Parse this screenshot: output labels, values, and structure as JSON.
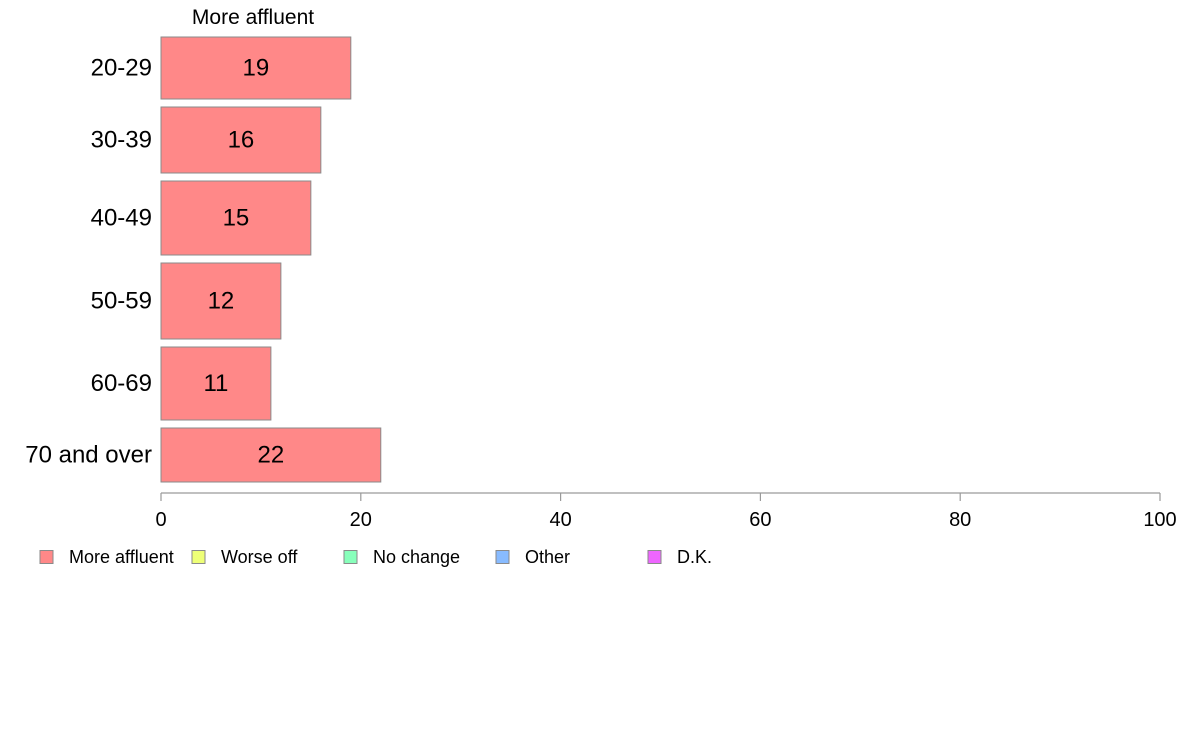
{
  "chart_data": {
    "type": "bar",
    "orientation": "horizontal",
    "stacked": true,
    "title": "More affluent",
    "categories": [
      "20-29",
      "30-39",
      "40-49",
      "50-59",
      "60-69",
      "70 and over"
    ],
    "series": [
      {
        "name": "More affluent",
        "color": "#ff8888",
        "values": [
          19,
          16,
          15,
          12,
          11,
          22
        ]
      },
      {
        "name": "Worse off",
        "color": "#eeff77",
        "values": [
          null,
          null,
          null,
          null,
          null,
          null
        ]
      },
      {
        "name": "No change",
        "color": "#88ffbb",
        "values": [
          null,
          null,
          null,
          null,
          null,
          null
        ]
      },
      {
        "name": "Other",
        "color": "#88bbff",
        "values": [
          null,
          null,
          null,
          null,
          null,
          null
        ]
      },
      {
        "name": "D.K.",
        "color": "#ee66ff",
        "values": [
          null,
          null,
          null,
          null,
          null,
          null
        ]
      }
    ],
    "data_labels": [
      "19",
      "16",
      "15",
      "12",
      "11",
      "22"
    ],
    "xlim": [
      0,
      100
    ],
    "xticks": [
      "0",
      "20",
      "40",
      "60",
      "80",
      "100"
    ],
    "grid": false,
    "legend_position": "bottom-left"
  }
}
